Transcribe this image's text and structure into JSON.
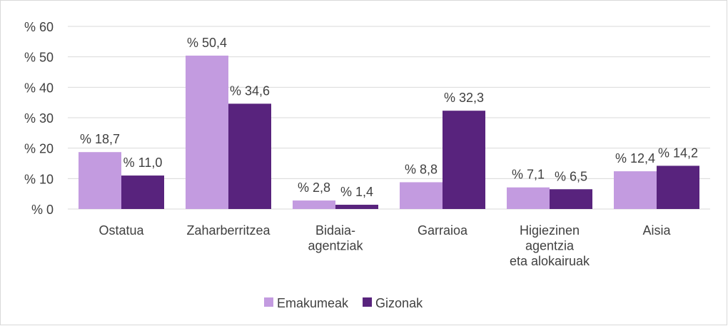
{
  "chart_data": {
    "type": "bar",
    "categories": [
      "Ostatua",
      "Zaharberritzea",
      "Bidaia-\nagentziak",
      "Garraioa",
      "Higiezinen\nagentzia\neta alokairuak",
      "Aisia"
    ],
    "series": [
      {
        "name": "Emakumeak",
        "color": "#c39be0",
        "values": [
          18.7,
          50.4,
          2.8,
          8.8,
          7.1,
          12.4
        ],
        "value_labels": [
          "% 18,7",
          "% 50,4",
          "% 2,8",
          "% 8,8",
          "% 7,1",
          "% 12,4"
        ]
      },
      {
        "name": "Gizonak",
        "color": "#58237d",
        "values": [
          11.0,
          34.6,
          1.4,
          32.3,
          6.5,
          14.2
        ],
        "value_labels": [
          "% 11,0",
          "% 34,6",
          "% 1,4",
          "% 32,3",
          "% 6,5",
          "% 14,2"
        ]
      }
    ],
    "ylim": [
      0,
      60
    ],
    "yticks": [
      {
        "value": 0,
        "label": "% 0"
      },
      {
        "value": 10,
        "label": "% 10"
      },
      {
        "value": 20,
        "label": "% 20"
      },
      {
        "value": 30,
        "label": "% 30"
      },
      {
        "value": 40,
        "label": "% 40"
      },
      {
        "value": 50,
        "label": "% 50"
      },
      {
        "value": 60,
        "label": "% 60"
      }
    ],
    "grid": true,
    "legend": "bottom"
  }
}
